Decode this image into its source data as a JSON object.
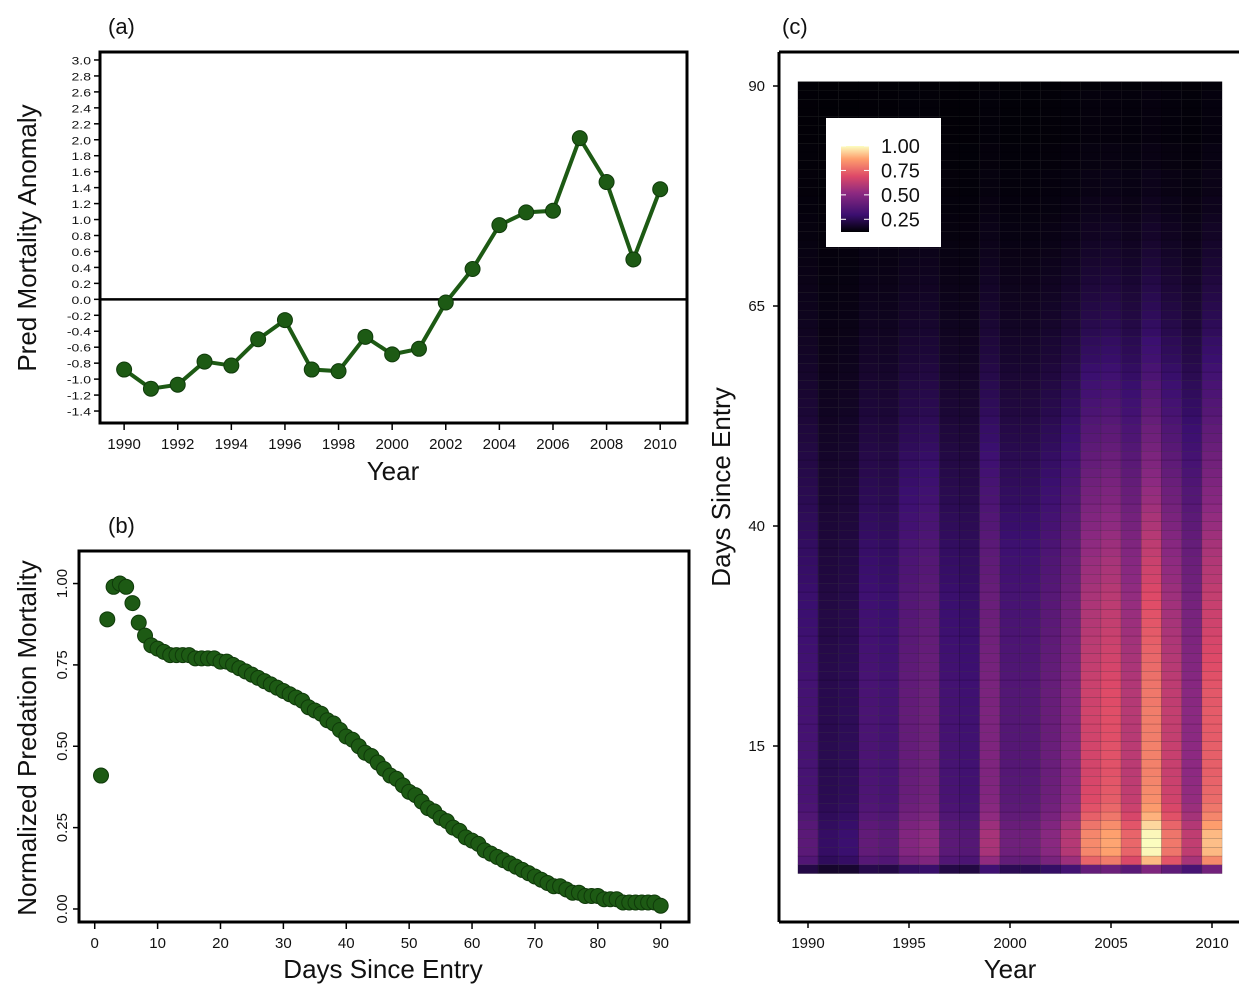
{
  "panels": [
    {
      "tag": "(a)",
      "chart_data": {
        "type": "line",
        "x": [
          1990,
          1991,
          1992,
          1993,
          1994,
          1995,
          1996,
          1997,
          1998,
          1999,
          2000,
          2001,
          2002,
          2003,
          2004,
          2005,
          2006,
          2007,
          2008,
          2009,
          2010
        ],
        "series": [
          {
            "values": [
              -0.88,
              -1.12,
              -1.07,
              -0.78,
              -0.83,
              -0.5,
              -0.26,
              -0.88,
              -0.9,
              -0.47,
              -0.69,
              -0.62,
              -0.04,
              0.38,
              0.93,
              1.09,
              1.11,
              2.02,
              1.47,
              0.5,
              1.38
            ],
            "color": "#1d5a14"
          }
        ],
        "xlabel": "Year",
        "ylabel": "Pred Mortality Anomaly",
        "xticks": [
          "1990",
          "1992",
          "1994",
          "1996",
          "1998",
          "2000",
          "2002",
          "2004",
          "2006",
          "2008",
          "2010"
        ],
        "yticks": [
          "-1.4",
          "-1.2",
          "-1.0",
          "-0.8",
          "-0.6",
          "-0.4",
          "-0.2",
          "0.0",
          "0.2",
          "0.4",
          "0.6",
          "0.8",
          "1.0",
          "1.2",
          "1.4",
          "1.6",
          "1.8",
          "2.0",
          "2.2",
          "2.4",
          "2.6",
          "2.8",
          "3.0"
        ],
        "xlim": [
          1989.1,
          2011.0
        ],
        "ylim": [
          -1.55,
          3.1
        ],
        "reference_line": 0.0,
        "grid": false
      }
    },
    {
      "tag": "(b)",
      "chart_data": {
        "type": "scatter",
        "x_range": [
          1,
          90
        ],
        "series": [
          {
            "values": [
              0.41,
              0.89,
              0.99,
              1.0,
              0.99,
              0.94,
              0.88,
              0.84,
              0.81,
              0.8,
              0.79,
              0.78,
              0.78,
              0.78,
              0.78,
              0.77,
              0.77,
              0.77,
              0.77,
              0.76,
              0.76,
              0.75,
              0.74,
              0.73,
              0.72,
              0.71,
              0.7,
              0.69,
              0.68,
              0.67,
              0.66,
              0.65,
              0.64,
              0.62,
              0.61,
              0.6,
              0.58,
              0.57,
              0.55,
              0.53,
              0.52,
              0.5,
              0.48,
              0.47,
              0.45,
              0.43,
              0.41,
              0.4,
              0.38,
              0.36,
              0.35,
              0.33,
              0.31,
              0.3,
              0.28,
              0.27,
              0.25,
              0.24,
              0.22,
              0.21,
              0.2,
              0.18,
              0.17,
              0.16,
              0.15,
              0.14,
              0.13,
              0.12,
              0.11,
              0.1,
              0.09,
              0.08,
              0.07,
              0.07,
              0.06,
              0.05,
              0.05,
              0.04,
              0.04,
              0.04,
              0.03,
              0.03,
              0.03,
              0.02,
              0.02,
              0.02,
              0.02,
              0.02,
              0.02,
              0.01
            ],
            "color": "#1d5a14"
          }
        ],
        "xlabel": "Days Since Entry",
        "ylabel": "Normalized Predation Mortality",
        "xticks": [
          "0",
          "10",
          "20",
          "30",
          "40",
          "50",
          "60",
          "70",
          "80",
          "90"
        ],
        "yticks": [
          "0.00",
          "0.25",
          "0.50",
          "0.75",
          "1.00"
        ],
        "xlim": [
          -2.5,
          94.5
        ],
        "ylim": [
          -0.04,
          1.1
        ],
        "grid": false
      }
    },
    {
      "tag": "(c)",
      "chart_data": {
        "type": "heatmap",
        "x": [
          1990,
          1991,
          1992,
          1993,
          1994,
          1995,
          1996,
          1997,
          1998,
          1999,
          2000,
          2001,
          2002,
          2003,
          2004,
          2005,
          2006,
          2007,
          2008,
          2009,
          2010
        ],
        "y_range": [
          1,
          90
        ],
        "year_intensity": [
          0.3,
          0.18,
          0.2,
          0.32,
          0.3,
          0.42,
          0.46,
          0.3,
          0.28,
          0.52,
          0.36,
          0.36,
          0.44,
          0.55,
          0.8,
          0.86,
          0.72,
          1.0,
          0.76,
          0.58,
          0.9
        ],
        "xlabel": "Year",
        "ylabel": "Days Since Entry",
        "xticks": [
          "1990",
          "1995",
          "2000",
          "2005",
          "2010"
        ],
        "yticks": [
          "15",
          "40",
          "65",
          "90"
        ],
        "xlim": [
          1989.5,
          2010.5
        ],
        "ylim": [
          1,
          90
        ],
        "colorscale": "inferno",
        "legend": {
          "position": "top-left",
          "labels": [
            "1.00",
            "0.75",
            "0.50",
            "0.25"
          ]
        }
      }
    }
  ]
}
